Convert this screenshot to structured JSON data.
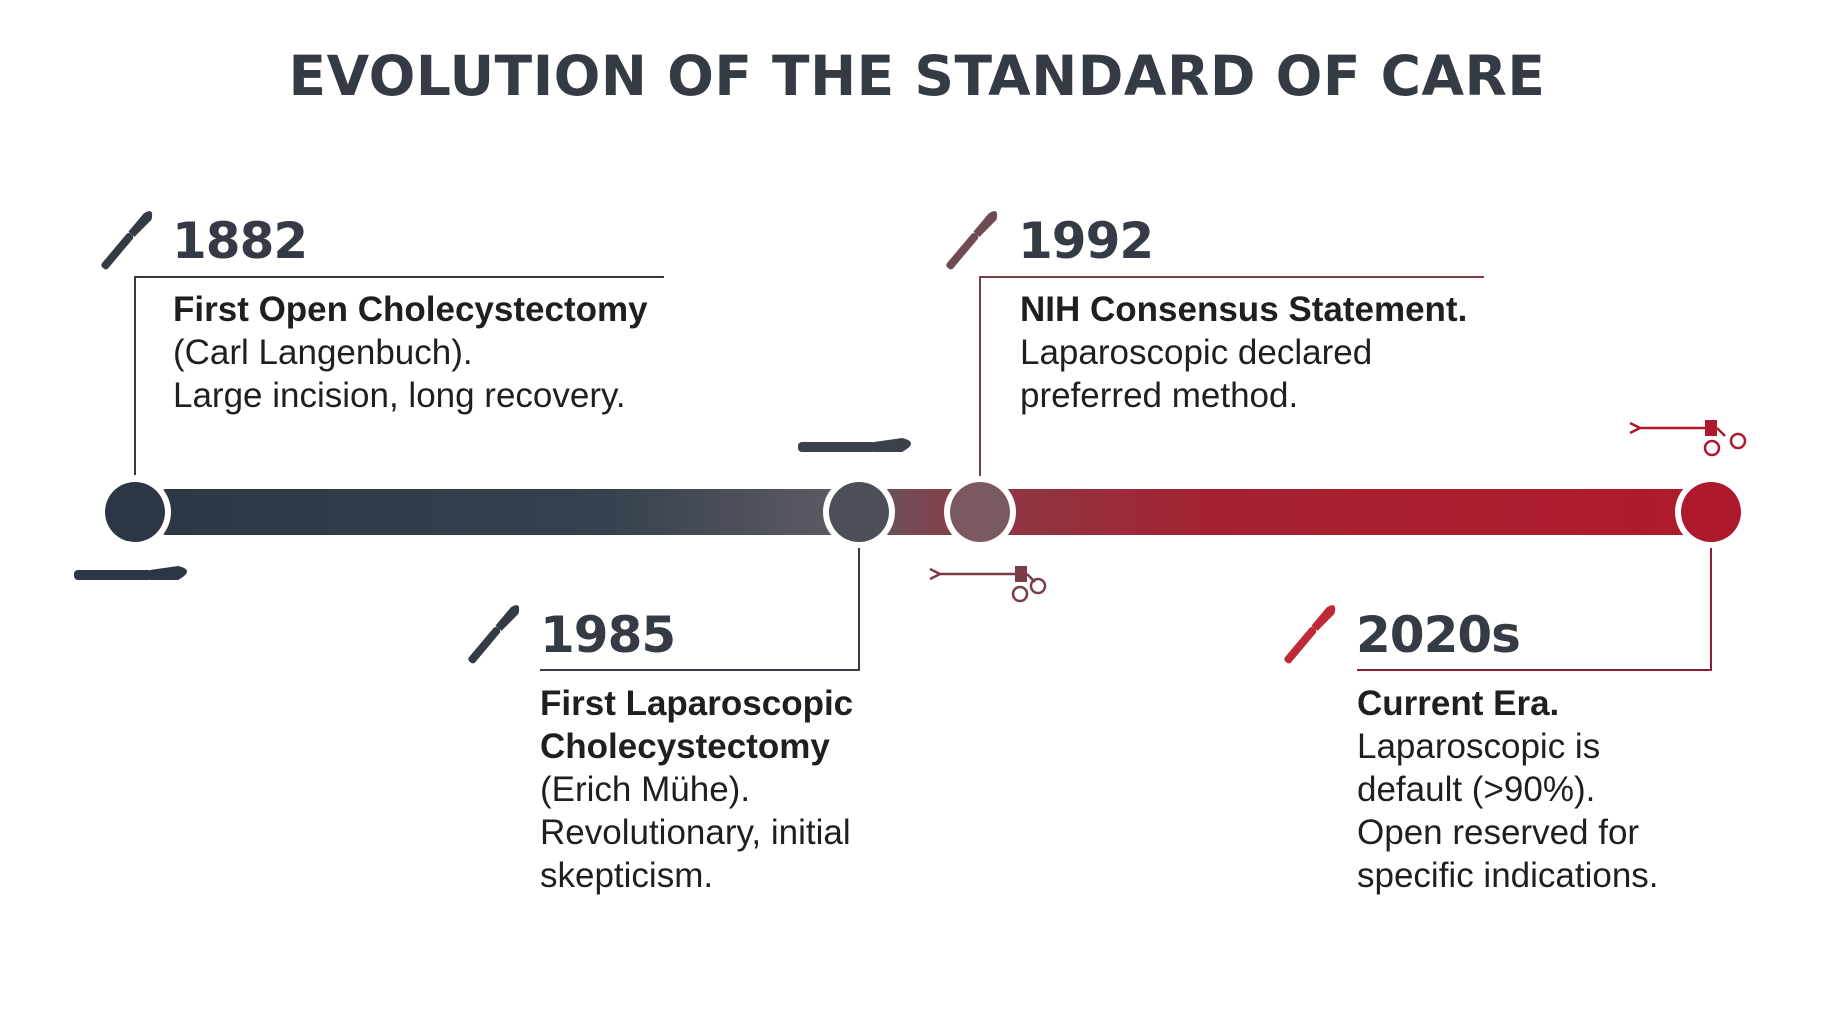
{
  "title": "EVOLUTION OF THE STANDARD OF CARE",
  "colors": {
    "dark": "#2d3644",
    "mid": "#7a5a60",
    "red": "#ae1a2b",
    "text": "#1f1f1f"
  },
  "events": [
    {
      "year": "1882",
      "headline": [
        "First Open Cholecystectomy"
      ],
      "details": [
        "(Carl Langenbuch).",
        "Large incision, long recovery."
      ],
      "icon": "scalpel-icon"
    },
    {
      "year": "1985",
      "headline": [
        "First Laparoscopic",
        "Cholecystectomy"
      ],
      "details": [
        "(Erich Mühe).",
        "Revolutionary, initial",
        "skepticism."
      ],
      "icon": "scalpel-icon"
    },
    {
      "year": "1992",
      "headline": [
        "NIH Consensus Statement."
      ],
      "details": [
        "Laparoscopic declared",
        "preferred method."
      ],
      "icon": "scalpel-icon"
    },
    {
      "year": "2020s",
      "headline": [
        "Current Era."
      ],
      "details": [
        "Laparoscopic is",
        "default (>90%).",
        "Open reserved for",
        "specific indications."
      ],
      "icon": "scalpel-icon"
    }
  ],
  "decorations": [
    "scalpel-icon",
    "laparoscopic-grasper-icon"
  ]
}
